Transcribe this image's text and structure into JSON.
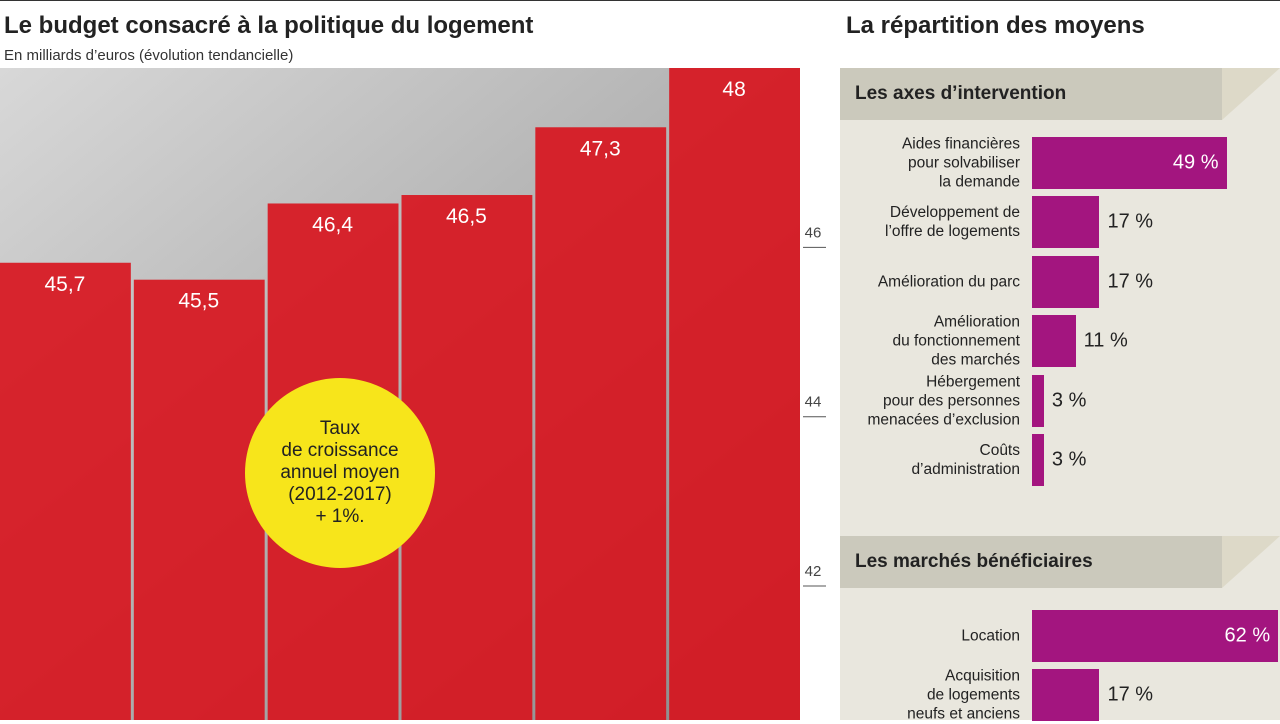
{
  "chart_data": [
    {
      "type": "bar",
      "title": "Le budget consacré à la politique du logement",
      "subtitle": "En milliards d’euros (évolution tendancielle)",
      "categories": [
        null,
        null,
        null,
        null,
        null,
        null
      ],
      "values": [
        45.7,
        45.5,
        46.4,
        46.5,
        47.3,
        48
      ],
      "value_labels": [
        "45,7",
        "45,5",
        "46,4",
        "46,5",
        "47,3",
        "48"
      ],
      "color": "#d8121c",
      "ylim": [
        40.3,
        48
      ],
      "yticks": [
        42,
        44,
        46
      ],
      "annotation": "Taux\nde croissance\nannuel moyen\n(2012-2017)\n+ 1%."
    },
    {
      "type": "hbar",
      "panel_title": "La répartition des moyens",
      "title": "Les axes d’intervention",
      "categories": [
        "Aides financières\npour solvabiliser\nla demande",
        "Développement de\nl’offre de logements",
        "Amélioration du parc",
        "Amélioration\ndu fonctionnement\ndes marchés",
        "Hébergement\npour des personnes\nmenacées d’exclusion",
        "Coûts\nd’administration"
      ],
      "values": [
        49,
        17,
        17,
        11,
        3,
        3
      ],
      "value_labels": [
        "49 %",
        "17 %",
        "17 %",
        "11 %",
        "3 %",
        "3 %"
      ],
      "color": "#a3157f"
    },
    {
      "type": "hbar",
      "title": "Les marchés bénéficiaires",
      "categories": [
        "Location",
        "Acquisition\nde logements\nneufs et anciens"
      ],
      "values": [
        62,
        17
      ],
      "value_labels": [
        "62 %",
        "17 %"
      ],
      "color": "#a3157f"
    }
  ]
}
